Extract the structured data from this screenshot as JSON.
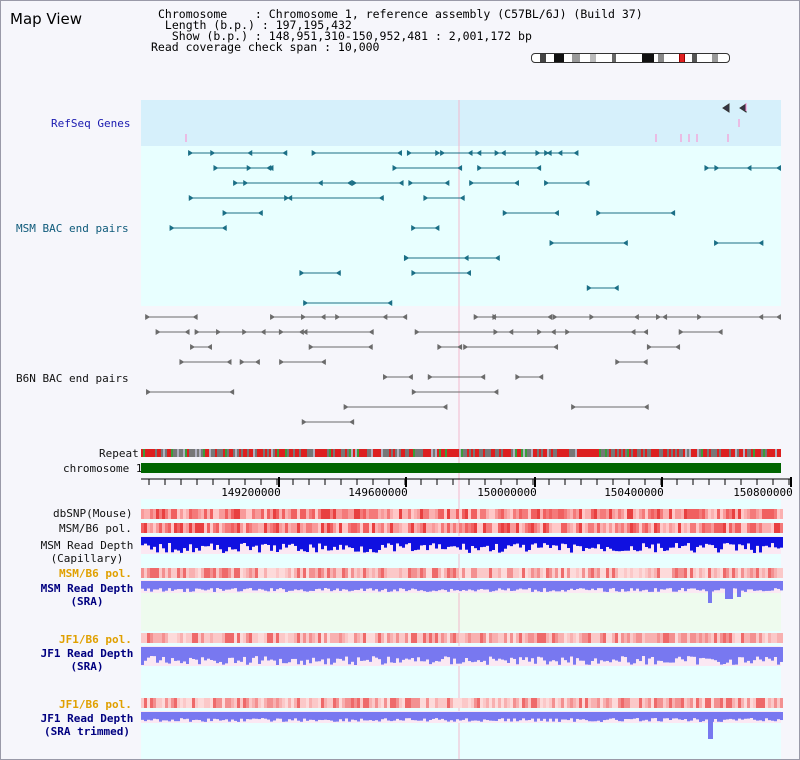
{
  "page_title": "Map View",
  "info": {
    "chromosome_line": "Chromosome    : Chromosome 1, reference assembly (C57BL/6J) (Build 37)",
    "length_line": " Length (b.p.) : 197,195,432",
    "show_line": "  Show (b.p.) : 148,951,310-150,952,481 : 2,001,172 bp",
    "coverage_line": "Read coverage check span : 10,000"
  },
  "tracks": {
    "refseq": "RefSeq Genes",
    "msm_bac": "MSM BAC end pairs",
    "b6n_bac": "B6N BAC end pairs",
    "repeat": "Repeat",
    "chromosome": "chromosome 1",
    "dbsnp": "dbSNP(Mouse)",
    "msm_b6_pol": "MSM/B6 pol.",
    "msm_depth_cap_1": "MSM Read Depth",
    "msm_depth_cap_2": "(Capillary)",
    "msm_b6_pol_2": "MSM/B6 pol.",
    "msm_depth_sra_1": "MSM Read Depth",
    "msm_depth_sra_2": "(SRA)",
    "jf1_b6_pol": "JF1/B6 pol.",
    "jf1_depth_sra_1": "JF1 Read Depth",
    "jf1_depth_sra_2": "(SRA)",
    "jf1_b6_pol_2": "JF1/B6 pol.",
    "jf1_depth_trim_1": "JF1 Read Depth",
    "jf1_depth_trim_2": "(SRA trimmed)"
  },
  "axis": {
    "ticks": [
      "149200000",
      "149600000",
      "150000000",
      "150400000",
      "150800000"
    ]
  },
  "colors": {
    "refseq_band": "#d6f0fb",
    "msm_band": "#e8ffff",
    "b6n_band": "#f6f6fb",
    "chromosome": "#006400",
    "depth_capillary": "#1010e0",
    "depth_sra": "#7878f0",
    "label_orange": "#e0a000",
    "label_navy": "#000080"
  }
}
